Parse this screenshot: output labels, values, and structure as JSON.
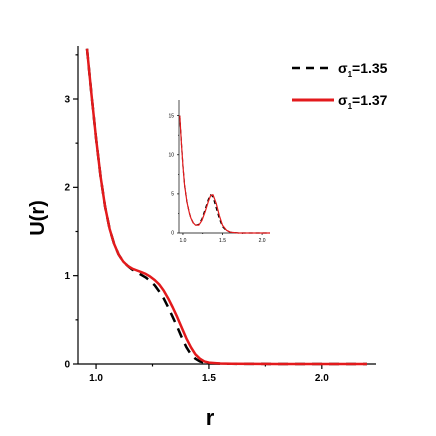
{
  "chart_data": {
    "type": "line",
    "xlabel": "r",
    "ylabel": "U(r)",
    "xlim": [
      0.92,
      2.24
    ],
    "ylim": [
      0,
      3.6
    ],
    "xticks": [
      1.0,
      1.5,
      2.0
    ],
    "xtick_labels": [
      "1.0",
      "1.5",
      "2.0"
    ],
    "yticks": [
      0,
      1,
      2,
      3
    ],
    "ytick_labels": [
      "0",
      "1",
      "2",
      "3"
    ],
    "grid": false,
    "legend_position": "top-right",
    "series": [
      {
        "name": "σ1=1.35",
        "legend_main": "σ",
        "legend_sub": "1",
        "legend_rest": "=1.35",
        "style": "dashed",
        "color": "#000000",
        "x": [
          0.96,
          0.98,
          1.0,
          1.02,
          1.04,
          1.06,
          1.08,
          1.1,
          1.12,
          1.14,
          1.16,
          1.18,
          1.2,
          1.22,
          1.24,
          1.26,
          1.28,
          1.3,
          1.32,
          1.34,
          1.36,
          1.38,
          1.4,
          1.42,
          1.44,
          1.46,
          1.48,
          1.5,
          1.55,
          1.6,
          1.7,
          1.8,
          1.9,
          2.0,
          2.1,
          2.2
        ],
        "y": [
          3.57,
          3.05,
          2.55,
          2.12,
          1.78,
          1.53,
          1.36,
          1.24,
          1.16,
          1.11,
          1.07,
          1.04,
          1.01,
          0.98,
          0.94,
          0.89,
          0.82,
          0.74,
          0.64,
          0.53,
          0.42,
          0.3,
          0.19,
          0.11,
          0.06,
          0.03,
          0.015,
          0.008,
          0.004,
          0.002,
          0.001,
          0.0,
          0.0,
          0.0,
          0.0,
          0.0
        ]
      },
      {
        "name": "σ1=1.37",
        "legend_main": "σ",
        "legend_sub": "1",
        "legend_rest": "=1.37",
        "style": "solid",
        "color": "#e31a1c",
        "x": [
          0.96,
          0.98,
          1.0,
          1.02,
          1.04,
          1.06,
          1.08,
          1.1,
          1.12,
          1.14,
          1.16,
          1.18,
          1.2,
          1.22,
          1.24,
          1.26,
          1.28,
          1.3,
          1.32,
          1.34,
          1.36,
          1.38,
          1.4,
          1.42,
          1.44,
          1.46,
          1.48,
          1.5,
          1.55,
          1.6,
          1.7,
          1.8,
          1.9,
          2.0,
          2.1,
          2.2
        ],
        "y": [
          3.57,
          3.05,
          2.55,
          2.12,
          1.78,
          1.53,
          1.36,
          1.24,
          1.16,
          1.11,
          1.08,
          1.06,
          1.04,
          1.02,
          0.99,
          0.95,
          0.9,
          0.83,
          0.74,
          0.64,
          0.53,
          0.41,
          0.29,
          0.19,
          0.11,
          0.06,
          0.03,
          0.016,
          0.006,
          0.003,
          0.001,
          0.0,
          0.0,
          0.0,
          0.0,
          0.0
        ]
      }
    ],
    "inset": {
      "type": "line",
      "xlim": [
        0.95,
        2.1
      ],
      "ylim": [
        0,
        17
      ],
      "xticks": [
        1.0,
        1.5,
        2.0
      ],
      "xtick_labels": [
        "1.0",
        "1.5",
        "2.0"
      ],
      "yticks": [
        0,
        5,
        10,
        15
      ],
      "ytick_labels": [
        "0",
        "5",
        "10",
        "15"
      ],
      "series": [
        {
          "style": "dashed",
          "color": "#000000",
          "x": [
            0.96,
            0.98,
            1.0,
            1.02,
            1.05,
            1.08,
            1.1,
            1.13,
            1.16,
            1.2,
            1.24,
            1.28,
            1.32,
            1.35,
            1.38,
            1.42,
            1.46,
            1.5,
            1.55,
            1.6,
            1.7,
            1.8,
            1.9,
            2.0,
            2.1
          ],
          "y": [
            15.0,
            11.5,
            8.5,
            6.2,
            4.0,
            2.6,
            1.9,
            1.3,
            1.0,
            1.1,
            1.8,
            3.0,
            4.3,
            4.9,
            4.6,
            3.2,
            1.8,
            0.8,
            0.3,
            0.1,
            0.0,
            0.0,
            0.0,
            0.0,
            0.0
          ]
        },
        {
          "style": "solid",
          "color": "#e31a1c",
          "x": [
            0.96,
            0.98,
            1.0,
            1.02,
            1.05,
            1.08,
            1.1,
            1.13,
            1.16,
            1.2,
            1.24,
            1.28,
            1.32,
            1.35,
            1.38,
            1.42,
            1.46,
            1.5,
            1.55,
            1.6,
            1.7,
            1.8,
            1.9,
            2.0,
            2.1
          ],
          "y": [
            15.0,
            11.5,
            8.5,
            6.2,
            4.0,
            2.6,
            1.9,
            1.3,
            1.0,
            1.0,
            1.6,
            2.7,
            4.0,
            4.8,
            4.9,
            3.8,
            2.2,
            1.0,
            0.35,
            0.1,
            0.0,
            0.0,
            0.0,
            0.0,
            0.0
          ]
        }
      ]
    }
  }
}
